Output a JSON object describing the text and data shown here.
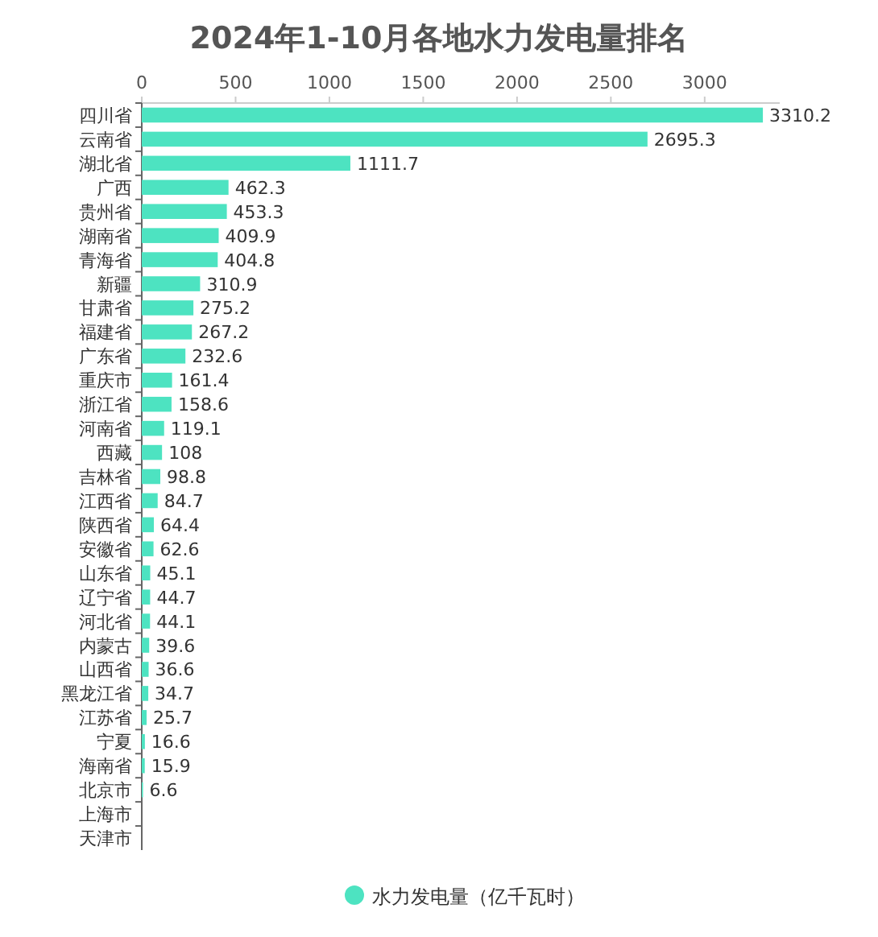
{
  "chart_data": {
    "type": "bar",
    "orientation": "horizontal",
    "title": "2024年1-10月各地水力发电量排名",
    "categories": [
      "四川省",
      "云南省",
      "湖北省",
      "广西",
      "贵州省",
      "湖南省",
      "青海省",
      "新疆",
      "甘肃省",
      "福建省",
      "广东省",
      "重庆市",
      "浙江省",
      "河南省",
      "西藏",
      "吉林省",
      "江西省",
      "陕西省",
      "安徽省",
      "山东省",
      "辽宁省",
      "河北省",
      "内蒙古",
      "山西省",
      "黑龙江省",
      "江苏省",
      "宁夏",
      "海南省",
      "北京市",
      "上海市",
      "天津市"
    ],
    "series": [
      {
        "name": "水力发电量（亿千瓦时）",
        "color": "#4de3c1",
        "values": [
          3310.2,
          2695.3,
          1111.7,
          462.3,
          453.3,
          409.9,
          404.8,
          310.9,
          275.2,
          267.2,
          232.6,
          161.4,
          158.6,
          119.1,
          108,
          98.8,
          84.7,
          64.4,
          62.6,
          45.1,
          44.7,
          44.1,
          39.6,
          36.6,
          34.7,
          25.7,
          16.6,
          15.9,
          6.6,
          0,
          0
        ],
        "value_labels": [
          "3310.2",
          "2695.3",
          "1111.7",
          "462.3",
          "453.3",
          "409.9",
          "404.8",
          "310.9",
          "275.2",
          "267.2",
          "232.6",
          "161.4",
          "158.6",
          "119.1",
          "108",
          "98.8",
          "84.7",
          "64.4",
          "62.6",
          "45.1",
          "44.7",
          "44.1",
          "39.6",
          "36.6",
          "34.7",
          "25.7",
          "16.6",
          "15.9",
          "6.6",
          null,
          null
        ]
      }
    ],
    "xlim": [
      0,
      3400
    ],
    "xticks": [
      0,
      500,
      1000,
      1500,
      2000,
      2500,
      3000
    ],
    "legend": "bottom"
  }
}
